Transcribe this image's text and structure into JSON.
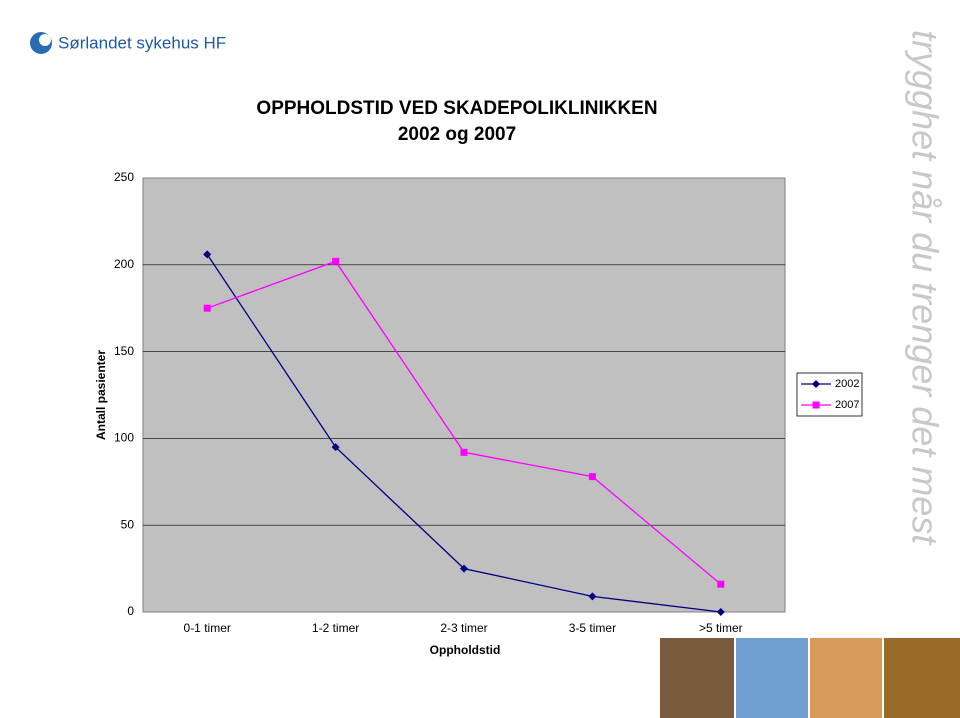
{
  "header": {
    "logo": "Sørlandet sykehus HF",
    "tagline": "trygghet når du trenger det mest"
  },
  "chart_data": {
    "type": "line",
    "title": "OPPHOLDSTID VED SKADEPOLIKLINIKKEN",
    "subtitle": "2002 og 2007",
    "x_label": "Oppholdstid",
    "y_label": "Antall pasienter",
    "categories": [
      "0-1 timer",
      "1-2 timer",
      "2-3 timer",
      "3-5 timer",
      ">5 timer"
    ],
    "series": [
      {
        "name": "2002",
        "color": "#000080",
        "marker": "diamond",
        "values": [
          206,
          95,
          25,
          9,
          0
        ]
      },
      {
        "name": "2007",
        "color": "#ff00ff",
        "marker": "square",
        "values": [
          175,
          202,
          92,
          78,
          16
        ]
      }
    ],
    "ylim": [
      0,
      250
    ],
    "yticks": [
      0,
      50,
      100,
      150,
      200,
      250
    ],
    "grid": true,
    "legend": "right"
  }
}
